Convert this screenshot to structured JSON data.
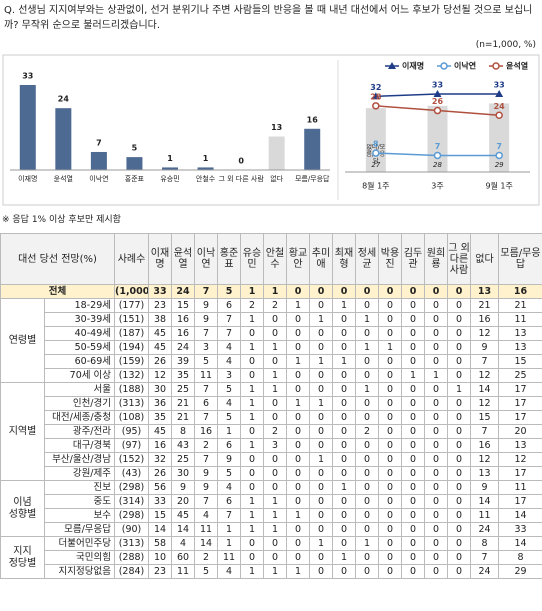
{
  "question": "Q. 선생님 지지여부와는 상관없이, 선거 분위기나 주변 사람들의 반응을 볼 때 내년 대선에서 어느 후보가 당선될 것으로 보십니까? 무작위 순으로 불러드리겠습니다.",
  "sample_note": "(n=1,000, %)",
  "chart_data": [
    {
      "type": "bar",
      "categories": [
        "이재명",
        "윤석열",
        "이낙연",
        "홍준표",
        "유승민",
        "안철수",
        "그 외 다른 사람",
        "없다",
        "모름/무응답"
      ],
      "values": [
        33,
        24,
        7,
        5,
        1,
        1,
        0,
        13,
        16
      ],
      "colors": [
        "#4d6a93",
        "#4d6a93",
        "#4d6a93",
        "#4d6a93",
        "#4d6a93",
        "#4d6a93",
        "#4d6a93",
        "#d9d9d9",
        "#4d6a93"
      ]
    },
    {
      "type": "line",
      "categories": [
        "8월 1주",
        "3주",
        "9월 1주"
      ],
      "bars": {
        "name": "없다/모름/무응답",
        "color": "#d9d9d9",
        "values": [
          27,
          28,
          29
        ]
      },
      "series": [
        {
          "name": "이재명",
          "color": "#1f3c88",
          "marker": "triangle",
          "values": [
            32,
            33,
            33
          ]
        },
        {
          "name": "이낙연",
          "color": "#5b9bd5",
          "marker": "circle",
          "values": [
            8,
            7,
            7
          ]
        },
        {
          "name": "윤석열",
          "color": "#b0503f",
          "marker": "circle",
          "values": [
            28,
            26,
            24
          ]
        }
      ]
    }
  ],
  "footnote": "※ 응답 1% 이상 후보만 제시함",
  "table": {
    "header_label": "대선 당선 전망(%)",
    "columns": [
      "사례수",
      "이재명",
      "윤석열",
      "이낙연",
      "홍준표",
      "유승민",
      "안철수",
      "황교안",
      "추미애",
      "최재형",
      "정세균",
      "박용진",
      "김두관",
      "원희룡",
      "그 외 다른 사람",
      "없다",
      "모름/무응답"
    ],
    "total": {
      "label": "전체",
      "n": "(1,000)",
      "values": [
        33,
        24,
        7,
        5,
        1,
        1,
        0,
        0,
        0,
        0,
        0,
        0,
        0,
        0,
        13,
        16
      ]
    },
    "groups": [
      {
        "label": "연령별",
        "rows": [
          {
            "label": "18-29세",
            "n": "(177)",
            "values": [
              23,
              15,
              9,
              6,
              2,
              2,
              1,
              0,
              1,
              0,
              0,
              0,
              0,
              0,
              21,
              21
            ]
          },
          {
            "label": "30-39세",
            "n": "(151)",
            "values": [
              38,
              16,
              9,
              7,
              1,
              0,
              0,
              1,
              0,
              1,
              0,
              0,
              0,
              0,
              16,
              11
            ]
          },
          {
            "label": "40-49세",
            "n": "(187)",
            "values": [
              45,
              16,
              7,
              7,
              0,
              0,
              0,
              0,
              0,
              0,
              0,
              0,
              0,
              0,
              12,
              13
            ]
          },
          {
            "label": "50-59세",
            "n": "(194)",
            "values": [
              45,
              24,
              3,
              4,
              1,
              1,
              0,
              0,
              0,
              1,
              1,
              0,
              0,
              0,
              9,
              13
            ]
          },
          {
            "label": "60-69세",
            "n": "(159)",
            "values": [
              26,
              39,
              5,
              4,
              0,
              0,
              1,
              1,
              1,
              0,
              0,
              0,
              0,
              0,
              7,
              15
            ]
          },
          {
            "label": "70세 이상",
            "n": "(132)",
            "values": [
              12,
              35,
              11,
              3,
              0,
              1,
              0,
              0,
              0,
              0,
              0,
              1,
              1,
              0,
              12,
              25
            ]
          }
        ]
      },
      {
        "label": "지역별",
        "rows": [
          {
            "label": "서울",
            "n": "(188)",
            "values": [
              30,
              25,
              7,
              5,
              1,
              1,
              0,
              0,
              0,
              1,
              0,
              0,
              0,
              1,
              14,
              17
            ]
          },
          {
            "label": "인천/경기",
            "n": "(313)",
            "values": [
              36,
              21,
              6,
              4,
              1,
              0,
              1,
              1,
              0,
              0,
              0,
              0,
              0,
              0,
              12,
              17
            ]
          },
          {
            "label": "대전/세종/충청",
            "n": "(108)",
            "values": [
              35,
              21,
              7,
              5,
              1,
              0,
              0,
              0,
              0,
              0,
              0,
              0,
              0,
              0,
              15,
              17
            ]
          },
          {
            "label": "광주/전라",
            "n": "(95)",
            "values": [
              45,
              8,
              16,
              1,
              0,
              2,
              0,
              0,
              0,
              2,
              0,
              0,
              0,
              0,
              7,
              20
            ]
          },
          {
            "label": "대구/경북",
            "n": "(97)",
            "values": [
              16,
              43,
              2,
              6,
              1,
              3,
              0,
              0,
              0,
              0,
              0,
              0,
              0,
              0,
              16,
              13
            ]
          },
          {
            "label": "부산/울산/경남",
            "n": "(152)",
            "values": [
              32,
              25,
              7,
              9,
              0,
              0,
              0,
              1,
              0,
              0,
              0,
              0,
              0,
              0,
              12,
              12
            ]
          },
          {
            "label": "강원/제주",
            "n": "(43)",
            "values": [
              26,
              30,
              9,
              5,
              0,
              0,
              0,
              0,
              0,
              0,
              0,
              0,
              0,
              0,
              13,
              17
            ]
          }
        ]
      },
      {
        "label": "이념 성향별",
        "rows": [
          {
            "label": "진보",
            "n": "(298)",
            "values": [
              56,
              9,
              9,
              4,
              0,
              0,
              0,
              0,
              1,
              0,
              0,
              0,
              0,
              0,
              9,
              11
            ]
          },
          {
            "label": "중도",
            "n": "(314)",
            "values": [
              33,
              20,
              7,
              6,
              1,
              1,
              0,
              0,
              0,
              0,
              0,
              0,
              0,
              0,
              14,
              17
            ]
          },
          {
            "label": "보수",
            "n": "(298)",
            "values": [
              15,
              45,
              4,
              7,
              1,
              1,
              1,
              0,
              0,
              0,
              0,
              0,
              0,
              0,
              11,
              14
            ]
          },
          {
            "label": "모름/무응답",
            "n": "(90)",
            "values": [
              14,
              14,
              11,
              1,
              1,
              1,
              0,
              0,
              0,
              0,
              0,
              0,
              0,
              0,
              24,
              33
            ]
          }
        ]
      },
      {
        "label": "지지 정당별",
        "rows": [
          {
            "label": "더불어민주당",
            "n": "(313)",
            "values": [
              58,
              4,
              14,
              1,
              0,
              0,
              0,
              1,
              0,
              1,
              0,
              0,
              0,
              0,
              8,
              14
            ]
          },
          {
            "label": "국민의힘",
            "n": "(288)",
            "values": [
              10,
              60,
              2,
              11,
              0,
              0,
              0,
              0,
              1,
              0,
              0,
              0,
              0,
              0,
              7,
              8
            ]
          },
          {
            "label": "지지정당없음",
            "n": "(284)",
            "values": [
              23,
              11,
              5,
              4,
              1,
              1,
              1,
              0,
              0,
              0,
              0,
              0,
              0,
              0,
              24,
              29
            ]
          }
        ]
      }
    ]
  }
}
